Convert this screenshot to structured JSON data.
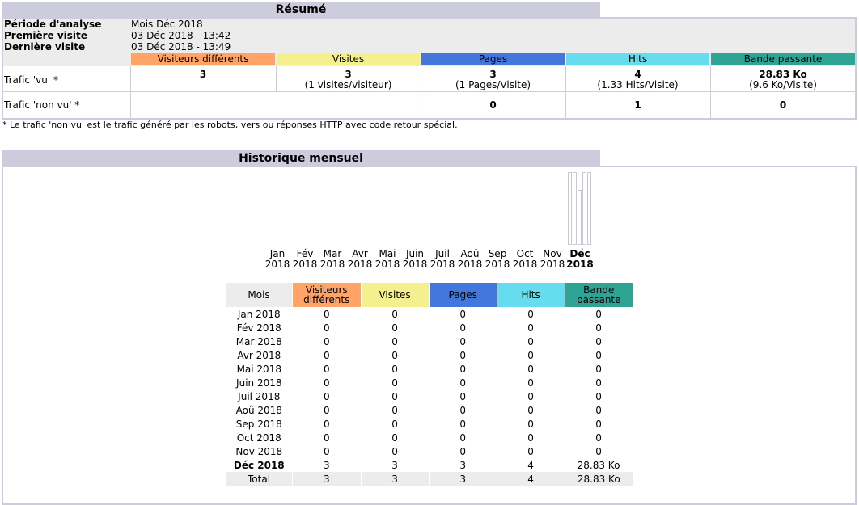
{
  "colors": {
    "section_bg": "#ccccdd",
    "visitors": "#ffa366",
    "visits": "#f4f08e",
    "pages": "#4477dd",
    "hits": "#66ddee",
    "bandwidth": "#2ea495",
    "row_head": "#ececec"
  },
  "summary": {
    "title": "Résumé",
    "period_label": "Période d'analyse",
    "period_value": "Mois Déc 2018",
    "first_visit_label": "Première visite",
    "first_visit_value": "03 Déc 2018 - 13:42",
    "last_visit_label": "Dernière visite",
    "last_visit_value": "03 Déc 2018 - 13:49",
    "columns": [
      "Visiteurs différents",
      "Visites",
      "Pages",
      "Hits",
      "Bande passante"
    ],
    "viewed": {
      "label": "Trafic 'vu' *",
      "visitors": "3",
      "visits": "3",
      "visits_sub": "(1 visites/visiteur)",
      "pages": "3",
      "pages_sub": "(1 Pages/Visite)",
      "hits": "4",
      "hits_sub": "(1.33 Hits/Visite)",
      "bandwidth": "28.83 Ko",
      "bandwidth_sub": "(9.6 Ko/Visite)"
    },
    "not_viewed": {
      "label": "Trafic 'non vu' *",
      "pages": "0",
      "hits": "1",
      "bandwidth": "0"
    },
    "footnote": "* Le trafic 'non vu' est le trafic généré par les robots, vers ou réponses HTTP avec code retour spécial."
  },
  "history": {
    "title": "Historique mensuel",
    "chart_months": [
      {
        "m": "Jan",
        "y": "2018"
      },
      {
        "m": "Fév",
        "y": "2018"
      },
      {
        "m": "Mar",
        "y": "2018"
      },
      {
        "m": "Avr",
        "y": "2018"
      },
      {
        "m": "Mai",
        "y": "2018"
      },
      {
        "m": "Juin",
        "y": "2018"
      },
      {
        "m": "Juil",
        "y": "2018"
      },
      {
        "m": "Aoû",
        "y": "2018"
      },
      {
        "m": "Sep",
        "y": "2018"
      },
      {
        "m": "Oct",
        "y": "2018"
      },
      {
        "m": "Nov",
        "y": "2018"
      },
      {
        "m": "Déc",
        "y": "2018"
      }
    ],
    "table_headers": {
      "month": "Mois",
      "visitors": "Visiteurs différents",
      "visits": "Visites",
      "pages": "Pages",
      "hits": "Hits",
      "bandwidth": "Bande passante"
    },
    "rows": [
      {
        "month": "Jan 2018",
        "visitors": "0",
        "visits": "0",
        "pages": "0",
        "hits": "0",
        "bandwidth": "0"
      },
      {
        "month": "Fév 2018",
        "visitors": "0",
        "visits": "0",
        "pages": "0",
        "hits": "0",
        "bandwidth": "0"
      },
      {
        "month": "Mar 2018",
        "visitors": "0",
        "visits": "0",
        "pages": "0",
        "hits": "0",
        "bandwidth": "0"
      },
      {
        "month": "Avr 2018",
        "visitors": "0",
        "visits": "0",
        "pages": "0",
        "hits": "0",
        "bandwidth": "0"
      },
      {
        "month": "Mai 2018",
        "visitors": "0",
        "visits": "0",
        "pages": "0",
        "hits": "0",
        "bandwidth": "0"
      },
      {
        "month": "Juin 2018",
        "visitors": "0",
        "visits": "0",
        "pages": "0",
        "hits": "0",
        "bandwidth": "0"
      },
      {
        "month": "Juil 2018",
        "visitors": "0",
        "visits": "0",
        "pages": "0",
        "hits": "0",
        "bandwidth": "0"
      },
      {
        "month": "Aoû 2018",
        "visitors": "0",
        "visits": "0",
        "pages": "0",
        "hits": "0",
        "bandwidth": "0"
      },
      {
        "month": "Sep 2018",
        "visitors": "0",
        "visits": "0",
        "pages": "0",
        "hits": "0",
        "bandwidth": "0"
      },
      {
        "month": "Oct 2018",
        "visitors": "0",
        "visits": "0",
        "pages": "0",
        "hits": "0",
        "bandwidth": "0"
      },
      {
        "month": "Nov 2018",
        "visitors": "0",
        "visits": "0",
        "pages": "0",
        "hits": "0",
        "bandwidth": "0"
      },
      {
        "month": "Déc 2018",
        "visitors": "3",
        "visits": "3",
        "pages": "3",
        "hits": "4",
        "bandwidth": "28.83 Ko",
        "current": true
      }
    ],
    "total": {
      "month": "Total",
      "visitors": "3",
      "visits": "3",
      "pages": "3",
      "hits": "4",
      "bandwidth": "28.83 Ko"
    }
  },
  "chart_data": {
    "type": "bar",
    "categories": [
      "Jan 2018",
      "Fév 2018",
      "Mar 2018",
      "Avr 2018",
      "Mai 2018",
      "Juin 2018",
      "Juil 2018",
      "Aoû 2018",
      "Sep 2018",
      "Oct 2018",
      "Nov 2018",
      "Déc 2018"
    ],
    "series": [
      {
        "values": [
          0,
          0,
          0,
          0,
          0,
          0,
          0,
          0,
          0,
          0,
          0,
          3
        ]
      },
      {
        "values": [
          0,
          0,
          0,
          0,
          0,
          0,
          0,
          0,
          0,
          0,
          0,
          3
        ]
      },
      {
        "values": [
          0,
          0,
          0,
          0,
          0,
          0,
          0,
          0,
          0,
          0,
          0,
          3
        ]
      },
      {
        "values": [
          0,
          0,
          0,
          0,
          0,
          0,
          0,
          0,
          0,
          0,
          0,
          4
        ]
      },
      {
        "values": [
          0,
          0,
          0,
          0,
          0,
          0,
          0,
          0,
          0,
          0,
          0,
          28.83
        ]
      }
    ]
  }
}
